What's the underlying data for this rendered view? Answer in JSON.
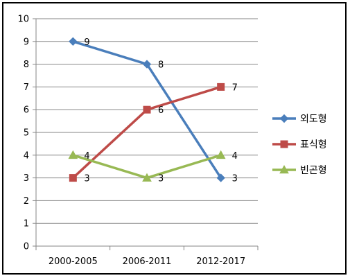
{
  "chart_data": {
    "type": "line",
    "categories": [
      "2000-2005",
      "2006-2011",
      "2012-2017"
    ],
    "ylim": [
      0,
      10
    ],
    "yticks": [
      "0",
      "1",
      "2",
      "3",
      "4",
      "5",
      "6",
      "7",
      "8",
      "9",
      "10"
    ],
    "grid": true,
    "legend_position": "right",
    "series": [
      {
        "name": "외도형",
        "values": [
          9,
          8,
          3
        ],
        "color": "#4a7ebb",
        "marker": "diamond"
      },
      {
        "name": "표식형",
        "values": [
          3,
          6,
          7
        ],
        "color": "#be4b48",
        "marker": "square"
      },
      {
        "name": "빈곤형",
        "values": [
          4,
          3,
          4
        ],
        "color": "#98b954",
        "marker": "triangle"
      }
    ]
  }
}
